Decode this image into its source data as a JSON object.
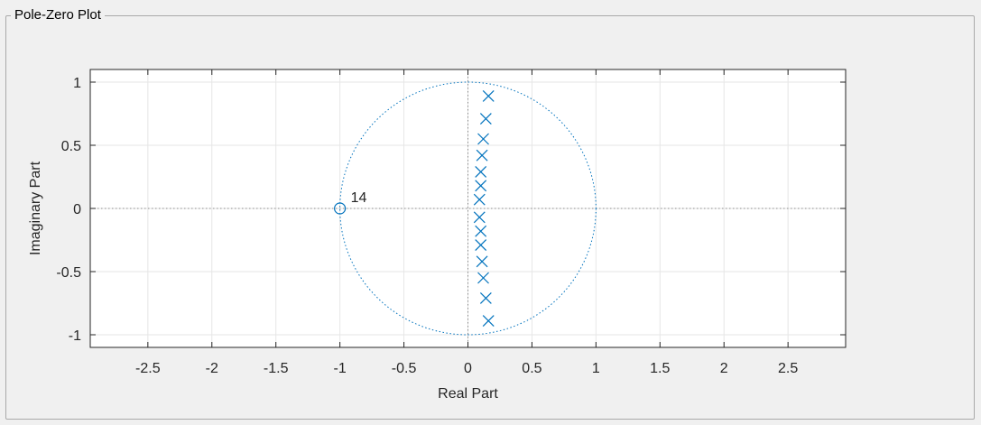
{
  "panel": {
    "title": "Pole-Zero Plot"
  },
  "chart_data": {
    "type": "scatter",
    "title": "",
    "xlabel": "Real Part",
    "ylabel": "Imaginary Part",
    "xlim": [
      -2.95,
      2.95
    ],
    "ylim": [
      -1.1,
      1.1
    ],
    "xticks": [
      "-2.5",
      "-2",
      "-1.5",
      "-1",
      "-0.5",
      "0",
      "0.5",
      "1",
      "1.5",
      "2",
      "2.5"
    ],
    "xtick_values": [
      -2.5,
      -2,
      -1.5,
      -1,
      -0.5,
      0,
      0.5,
      1,
      1.5,
      2,
      2.5
    ],
    "yticks": [
      "-1",
      "-0.5",
      "0",
      "0.5",
      "1"
    ],
    "ytick_values": [
      -1,
      -0.5,
      0,
      0.5,
      1
    ],
    "grid": true,
    "unit_circle": true,
    "colors": {
      "marker": "#0072bd",
      "grid": "#e6e6e6",
      "axis": "#262626"
    },
    "zeros": [
      {
        "x": -1,
        "y": 0,
        "multiplicity_label": "14"
      }
    ],
    "poles": [
      {
        "x": 0.16,
        "y": 0.89
      },
      {
        "x": 0.14,
        "y": 0.71
      },
      {
        "x": 0.12,
        "y": 0.55
      },
      {
        "x": 0.11,
        "y": 0.42
      },
      {
        "x": 0.1,
        "y": 0.29
      },
      {
        "x": 0.1,
        "y": 0.18
      },
      {
        "x": 0.09,
        "y": 0.07
      },
      {
        "x": 0.09,
        "y": -0.07
      },
      {
        "x": 0.1,
        "y": -0.18
      },
      {
        "x": 0.1,
        "y": -0.29
      },
      {
        "x": 0.11,
        "y": -0.42
      },
      {
        "x": 0.12,
        "y": -0.55
      },
      {
        "x": 0.14,
        "y": -0.71
      },
      {
        "x": 0.16,
        "y": -0.89
      }
    ]
  }
}
